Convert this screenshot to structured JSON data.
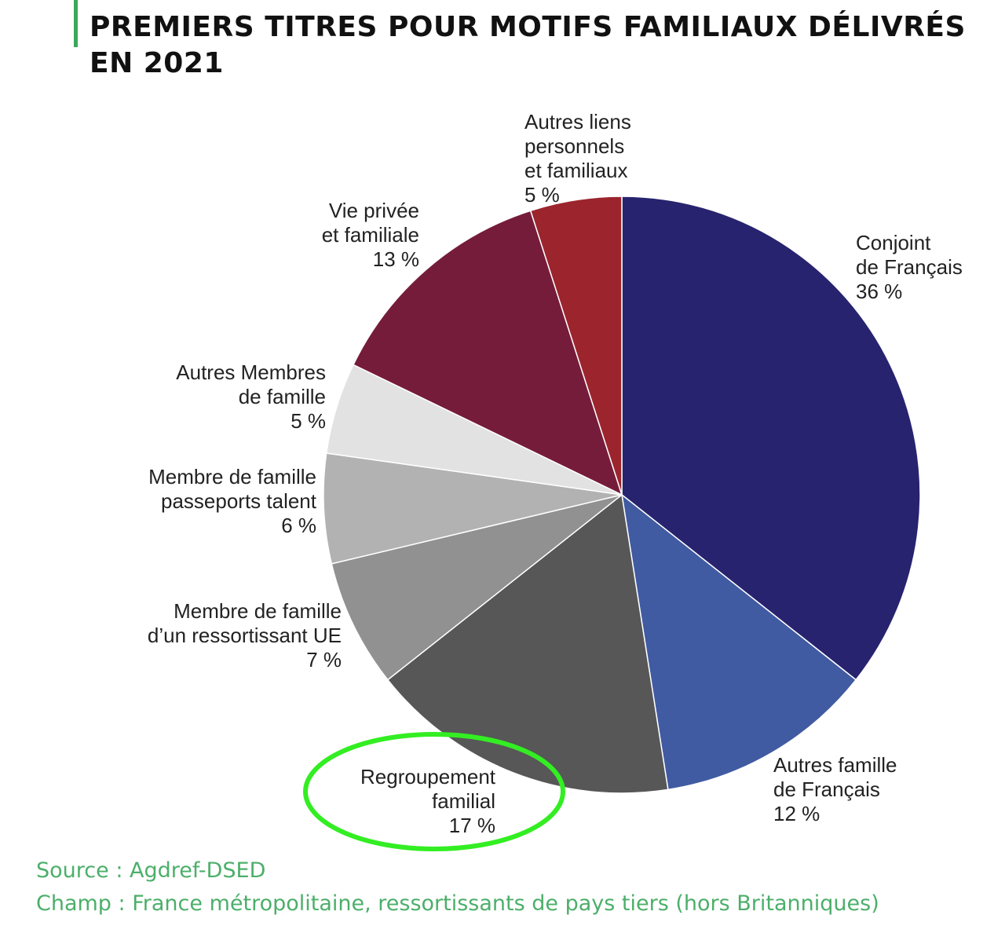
{
  "title": "PREMIERS TITRES POUR MOTIFS FAMILIAUX DÉLIVRÉS EN 2021",
  "source": "Source : Agdref-DSED",
  "scope": "Champ : France métropolitaine, ressortissants de pays tiers (hors Britanniques)",
  "highlight_color": "#33ee22",
  "chart_data": {
    "type": "pie",
    "unit": "%",
    "slices": [
      {
        "name": "Conjoint de Français",
        "value": 36,
        "label_lines": [
          "Conjoint",
          "de Français",
          "36 %"
        ],
        "color": "#27236e"
      },
      {
        "name": "Autres famille de Français",
        "value": 12,
        "label_lines": [
          "Autres famille",
          "de Français",
          "12 %"
        ],
        "color": "#415ba2"
      },
      {
        "name": "Regroupement familial",
        "value": 17,
        "label_lines": [
          "Regroupement",
          "familial",
          "17 %"
        ],
        "color": "#575757"
      },
      {
        "name": "Membre de famille d’un ressortissant UE",
        "value": 7,
        "label_lines": [
          "Membre de famille",
          "d’un ressortissant UE",
          "7 %"
        ],
        "color": "#919191"
      },
      {
        "name": "Membre de famille passeports talent",
        "value": 6,
        "label_lines": [
          "Membre de famille",
          "passeports talent",
          "6 %"
        ],
        "color": "#b2b2b2"
      },
      {
        "name": "Autres Membres de famille",
        "value": 5,
        "label_lines": [
          "Autres Membres",
          "de famille",
          "5 %"
        ],
        "color": "#e2e2e2"
      },
      {
        "name": "Vie privée et familiale",
        "value": 13,
        "label_lines": [
          "Vie privée",
          "et familiale",
          "13 %"
        ],
        "color": "#761c3b"
      },
      {
        "name": "Autres liens personnels et familiaux",
        "value": 5,
        "label_lines": [
          "Autres liens",
          "personnels",
          "et familiaux",
          "5 %"
        ],
        "color": "#9c242d"
      }
    ],
    "highlighted": "Regroupement familial"
  }
}
